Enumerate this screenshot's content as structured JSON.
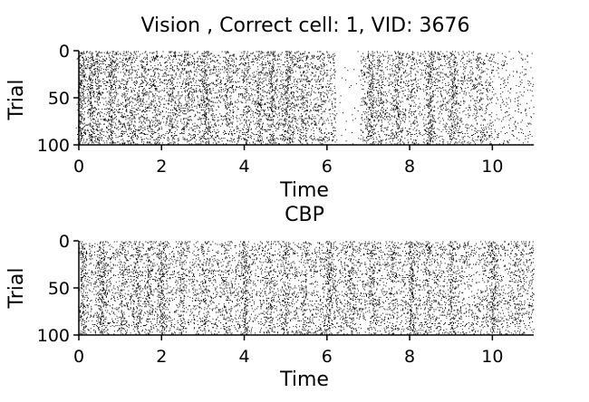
{
  "chart_data": [
    {
      "type": "scatter",
      "subtype": "spike-raster",
      "title": "Vision , Correct cell: 1, VID: 3676",
      "xlabel": "Time",
      "ylabel": "Trial",
      "xlim": [
        0,
        11
      ],
      "ylim": [
        100,
        0
      ],
      "xticks": [
        0,
        2,
        4,
        6,
        8,
        10
      ],
      "yticks": [
        0,
        50,
        100
      ],
      "n_trials": 100,
      "marker_color": "#000000",
      "grid": false,
      "bursts": [
        {
          "t": 0.05,
          "w": 0.05,
          "d": 1.0
        },
        {
          "t": 0.3,
          "w": 0.05,
          "d": 0.9
        },
        {
          "t": 0.45,
          "w": 0.04,
          "d": 0.7
        },
        {
          "t": 0.78,
          "w": 0.05,
          "d": 0.9
        },
        {
          "t": 1.1,
          "w": 0.05,
          "d": 0.6
        },
        {
          "t": 1.3,
          "w": 0.05,
          "d": 0.6
        },
        {
          "t": 1.55,
          "w": 0.05,
          "d": 0.6
        },
        {
          "t": 1.82,
          "w": 0.05,
          "d": 0.6
        },
        {
          "t": 2.25,
          "w": 0.05,
          "d": 0.5
        },
        {
          "t": 2.6,
          "w": 0.05,
          "d": 0.5
        },
        {
          "t": 3.05,
          "w": 0.07,
          "d": 1.1
        },
        {
          "t": 3.6,
          "w": 0.05,
          "d": 0.5
        },
        {
          "t": 4.05,
          "w": 0.05,
          "d": 0.5
        },
        {
          "t": 4.35,
          "w": 0.05,
          "d": 0.5
        },
        {
          "t": 4.65,
          "w": 0.05,
          "d": 0.8
        },
        {
          "t": 5.05,
          "w": 0.07,
          "d": 1.0
        },
        {
          "t": 5.45,
          "w": 0.05,
          "d": 0.4
        },
        {
          "t": 5.85,
          "w": 0.05,
          "d": 0.4
        },
        {
          "t": 7.05,
          "w": 0.06,
          "d": 1.0
        },
        {
          "t": 7.3,
          "w": 0.05,
          "d": 0.6
        },
        {
          "t": 7.7,
          "w": 0.06,
          "d": 0.9
        },
        {
          "t": 8.05,
          "w": 0.05,
          "d": 0.5
        },
        {
          "t": 8.5,
          "w": 0.05,
          "d": 1.0
        },
        {
          "t": 9.05,
          "w": 0.06,
          "d": 1.0
        },
        {
          "t": 9.7,
          "w": 0.05,
          "d": 0.4
        }
      ],
      "background_rate": [
        {
          "from": 0.0,
          "to": 6.2,
          "rate": 70
        },
        {
          "from": 6.2,
          "to": 6.8,
          "rate": 8
        },
        {
          "from": 6.8,
          "to": 10.0,
          "rate": 55
        },
        {
          "from": 10.0,
          "to": 11.0,
          "rate": 25
        }
      ]
    },
    {
      "type": "scatter",
      "subtype": "spike-raster",
      "title": "CBP",
      "xlabel": "Time",
      "ylabel": "Trial",
      "xlim": [
        0,
        11
      ],
      "ylim": [
        100,
        0
      ],
      "xticks": [
        0,
        2,
        4,
        6,
        8,
        10
      ],
      "yticks": [
        0,
        50,
        100
      ],
      "n_trials": 100,
      "marker_color": "#000000",
      "grid": false,
      "bursts": [
        {
          "t": 0.1,
          "w": 0.05,
          "d": 0.8
        },
        {
          "t": 0.55,
          "w": 0.06,
          "d": 1.2
        },
        {
          "t": 1.05,
          "w": 0.05,
          "d": 0.6
        },
        {
          "t": 1.4,
          "w": 0.05,
          "d": 0.7
        },
        {
          "t": 1.7,
          "w": 0.05,
          "d": 0.6
        },
        {
          "t": 2.0,
          "w": 0.06,
          "d": 1.1
        },
        {
          "t": 2.5,
          "w": 0.05,
          "d": 0.6
        },
        {
          "t": 3.0,
          "w": 0.05,
          "d": 0.6
        },
        {
          "t": 3.55,
          "w": 0.05,
          "d": 0.5
        },
        {
          "t": 4.0,
          "w": 0.06,
          "d": 1.1
        },
        {
          "t": 4.6,
          "w": 0.05,
          "d": 0.6
        },
        {
          "t": 5.0,
          "w": 0.05,
          "d": 0.7
        },
        {
          "t": 5.45,
          "w": 0.05,
          "d": 0.4
        },
        {
          "t": 6.05,
          "w": 0.06,
          "d": 1.2
        },
        {
          "t": 6.6,
          "w": 0.05,
          "d": 0.5
        },
        {
          "t": 7.1,
          "w": 0.05,
          "d": 0.6
        },
        {
          "t": 7.6,
          "w": 0.05,
          "d": 0.6
        },
        {
          "t": 8.05,
          "w": 0.06,
          "d": 1.0
        },
        {
          "t": 8.45,
          "w": 0.05,
          "d": 0.6
        },
        {
          "t": 9.0,
          "w": 0.05,
          "d": 0.7
        },
        {
          "t": 10.0,
          "w": 0.06,
          "d": 1.0
        },
        {
          "t": 10.6,
          "w": 0.05,
          "d": 0.4
        }
      ],
      "background_rate": [
        {
          "from": 0.0,
          "to": 11.0,
          "rate": 60
        }
      ]
    }
  ]
}
